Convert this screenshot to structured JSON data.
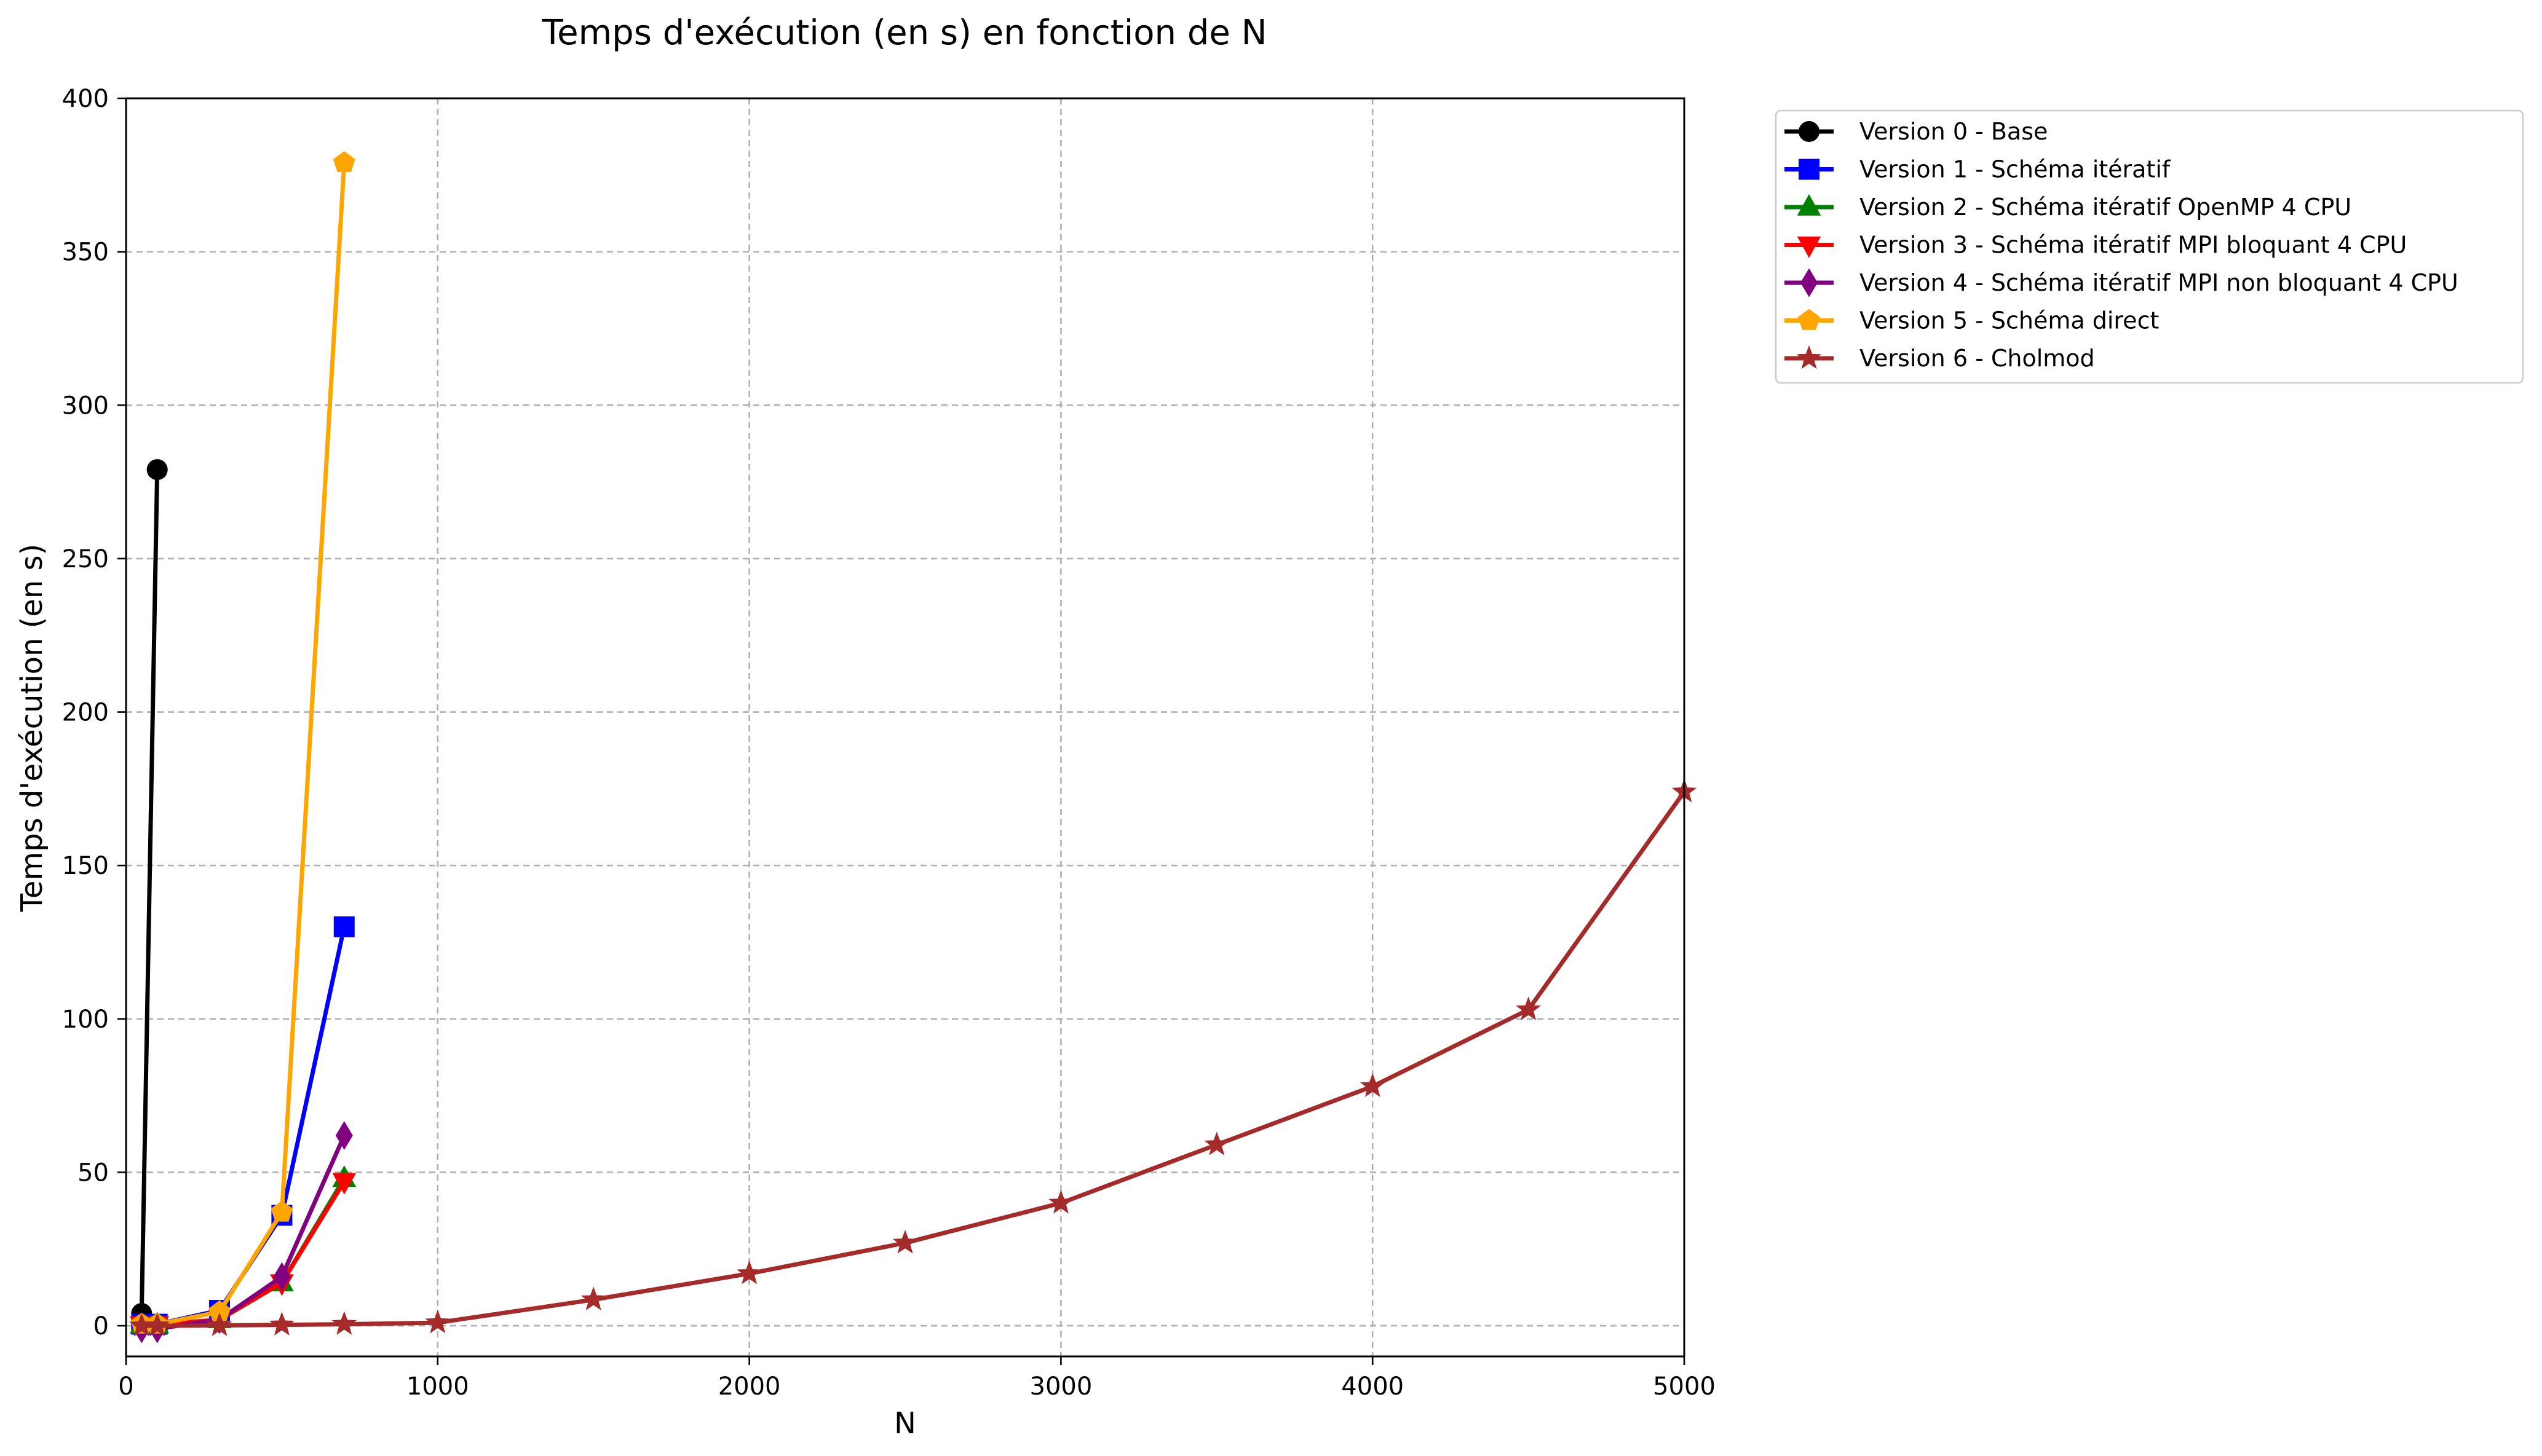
{
  "chart_data": {
    "type": "line",
    "title": "Temps d'exécution (en s) en fonction de N",
    "xlabel": "N",
    "ylabel": "Temps d'exécution (en s)",
    "xlim": [
      0,
      5000
    ],
    "ylim": [
      -10,
      400
    ],
    "xticks": [
      0,
      1000,
      2000,
      3000,
      4000,
      5000
    ],
    "yticks": [
      0,
      50,
      100,
      150,
      200,
      250,
      300,
      350,
      400
    ],
    "grid": true,
    "legend_position": "outside-right-top",
    "series": [
      {
        "name": "Version 0 - Base",
        "color": "#000000",
        "marker": "circle",
        "x": [
          50,
          100
        ],
        "y": [
          4,
          279
        ]
      },
      {
        "name": "Version 1 - Schéma itératif",
        "color": "#0000ff",
        "marker": "square",
        "x": [
          50,
          100,
          300,
          500,
          700
        ],
        "y": [
          0.5,
          0.5,
          5,
          36,
          130
        ]
      },
      {
        "name": "Version 2 - Schéma itératif OpenMP 4 CPU",
        "color": "#008000",
        "marker": "triangle-up",
        "x": [
          50,
          100,
          300,
          500,
          700
        ],
        "y": [
          0.2,
          0.3,
          2,
          14,
          48
        ]
      },
      {
        "name": "Version 3 - Schéma itératif MPI bloquant 4 CPU",
        "color": "#ff0000",
        "marker": "triangle-down",
        "x": [
          50,
          100,
          300,
          500,
          700
        ],
        "y": [
          0.3,
          0.4,
          2,
          14,
          47
        ]
      },
      {
        "name": "Version 4 - Schéma itératif MPI non bloquant 4 CPU",
        "color": "#800080",
        "marker": "thin-diamond",
        "x": [
          50,
          100,
          300,
          500,
          700
        ],
        "y": [
          -1,
          -1,
          2,
          16,
          62
        ]
      },
      {
        "name": "Version 5 - Schéma direct",
        "color": "#ffa500",
        "marker": "pentagon",
        "x": [
          50,
          100,
          300,
          500,
          700
        ],
        "y": [
          0.5,
          0.5,
          4.5,
          37,
          379
        ]
      },
      {
        "name": "Version 6 - Cholmod",
        "color": "#a52a2a",
        "marker": "star",
        "x": [
          50,
          100,
          300,
          500,
          700,
          1000,
          1500,
          2000,
          2500,
          3000,
          3500,
          4000,
          4500,
          5000
        ],
        "y": [
          0,
          0,
          0.1,
          0.3,
          0.5,
          1,
          8.5,
          17,
          27,
          40,
          59,
          78,
          103,
          174
        ]
      }
    ]
  }
}
